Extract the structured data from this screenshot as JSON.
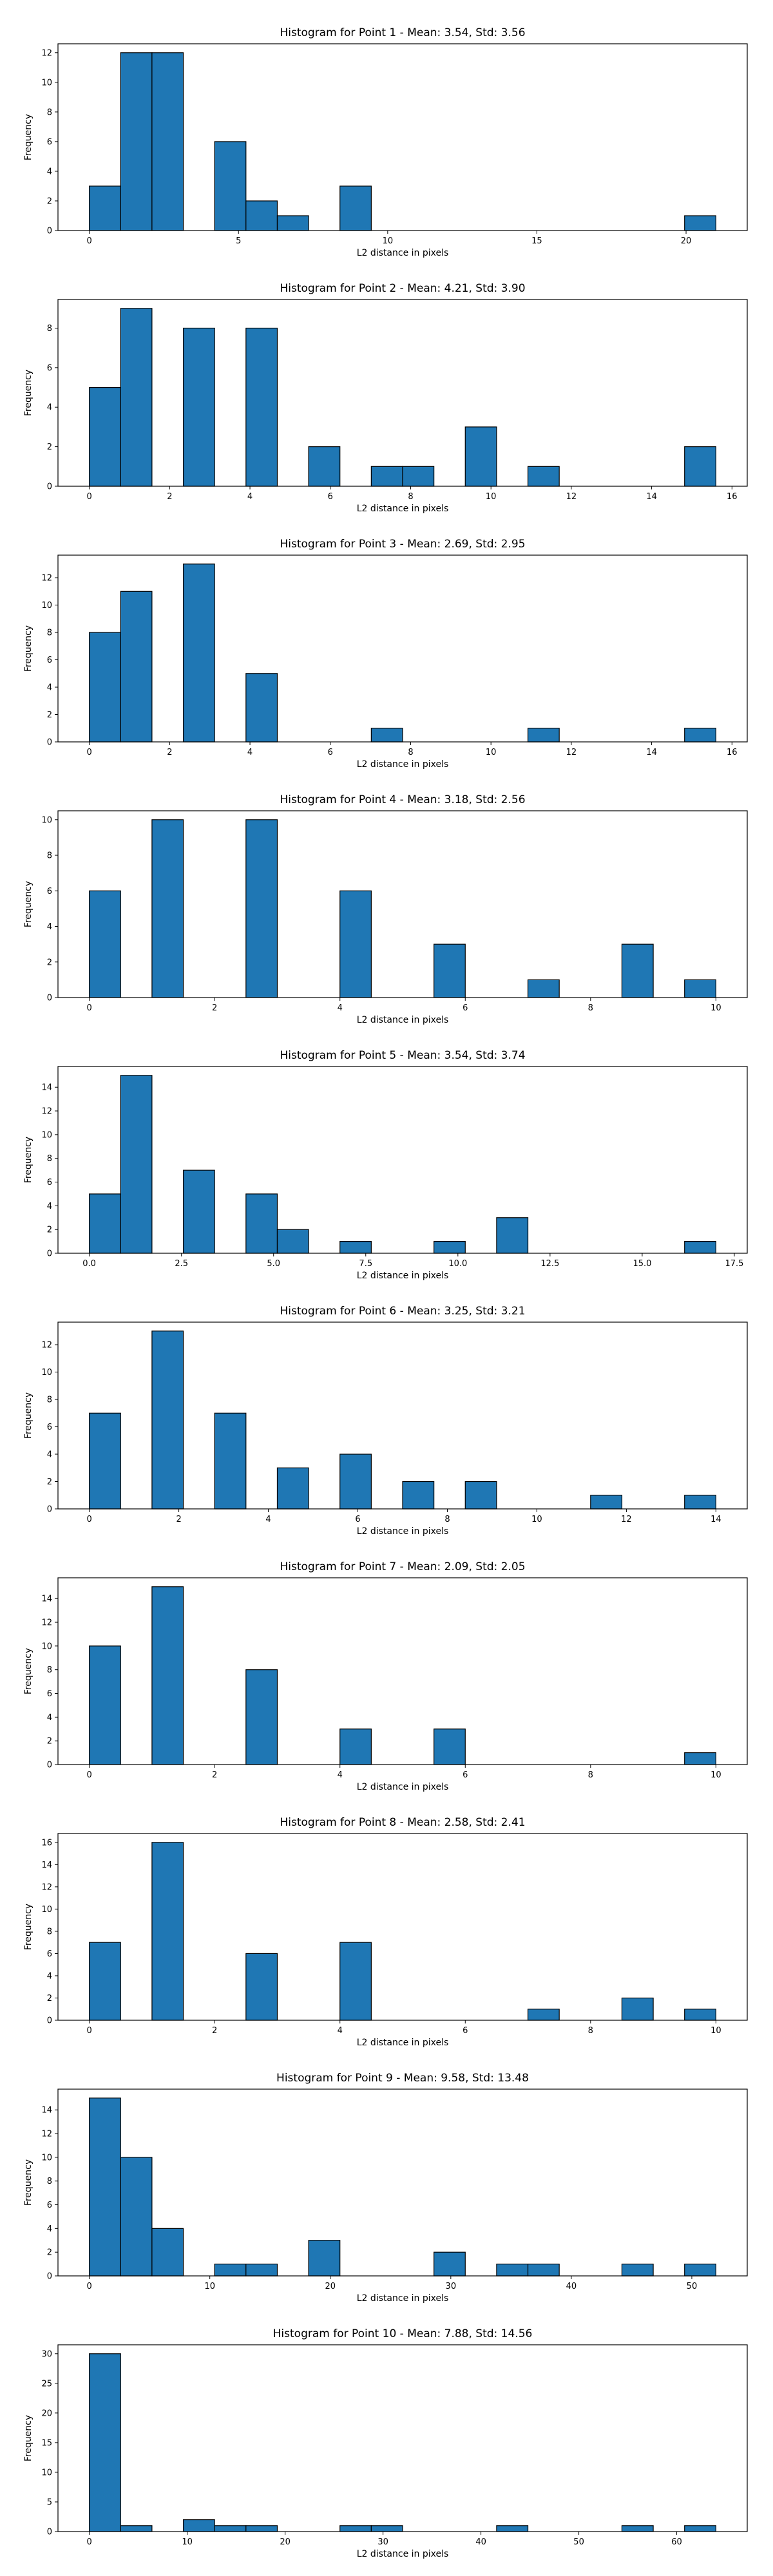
{
  "figure": {
    "bar_color": "#1f77b4",
    "edge_color": "#000000",
    "background": "#ffffff"
  },
  "chart_data": [
    {
      "type": "bar",
      "title": "Histogram for Point 1 - Mean: 3.54, Std: 3.56",
      "xlabel": "L2 distance in pixels",
      "ylabel": "Frequency",
      "xlim": [
        -1.05,
        22.05
      ],
      "ylim": [
        0,
        12.6
      ],
      "xticks": [
        0,
        5,
        10,
        15,
        20
      ],
      "yticks": [
        0,
        2,
        4,
        6,
        8,
        10,
        12
      ],
      "bin_edges": [
        0,
        1.05,
        2.1,
        3.15,
        4.2,
        5.25,
        6.3,
        7.35,
        8.4,
        9.45,
        10.5,
        11.55,
        12.6,
        13.65,
        14.7,
        15.75,
        16.8,
        17.85,
        18.9,
        19.95,
        21.0
      ],
      "values": [
        3,
        12,
        12,
        0,
        6,
        2,
        1,
        0,
        3,
        0,
        0,
        0,
        0,
        0,
        0,
        0,
        0,
        0,
        0,
        1
      ]
    },
    {
      "type": "bar",
      "title": "Histogram for Point 2 - Mean: 4.21, Std: 3.90",
      "xlabel": "L2 distance in pixels",
      "ylabel": "Frequency",
      "xlim": [
        -0.78,
        16.38
      ],
      "ylim": [
        0,
        9.45
      ],
      "xticks": [
        0,
        2,
        4,
        6,
        8,
        10,
        12,
        14,
        16
      ],
      "yticks": [
        0,
        2,
        4,
        6,
        8
      ],
      "bin_edges": [
        0,
        0.78,
        1.56,
        2.34,
        3.12,
        3.9,
        4.68,
        5.46,
        6.24,
        7.02,
        7.8,
        8.58,
        9.36,
        10.14,
        10.92,
        11.7,
        12.48,
        13.26,
        14.04,
        14.82,
        15.6
      ],
      "values": [
        5,
        9,
        0,
        8,
        0,
        8,
        0,
        2,
        0,
        1,
        1,
        0,
        3,
        0,
        1,
        0,
        0,
        0,
        0,
        2
      ]
    },
    {
      "type": "bar",
      "title": "Histogram for Point 3 - Mean: 2.69, Std: 2.95",
      "xlabel": "L2 distance in pixels",
      "ylabel": "Frequency",
      "xlim": [
        -0.78,
        16.38
      ],
      "ylim": [
        0,
        13.65
      ],
      "xticks": [
        0,
        2,
        4,
        6,
        8,
        10,
        12,
        14,
        16
      ],
      "yticks": [
        0,
        2,
        4,
        6,
        8,
        10,
        12
      ],
      "bin_edges": [
        0,
        0.78,
        1.56,
        2.34,
        3.12,
        3.9,
        4.68,
        5.46,
        6.24,
        7.02,
        7.8,
        8.58,
        9.36,
        10.14,
        10.92,
        11.7,
        12.48,
        13.26,
        14.04,
        14.82,
        15.6
      ],
      "values": [
        8,
        11,
        0,
        13,
        0,
        5,
        0,
        0,
        0,
        1,
        0,
        0,
        0,
        0,
        1,
        0,
        0,
        0,
        0,
        1
      ]
    },
    {
      "type": "bar",
      "title": "Histogram for Point 4 - Mean: 3.18, Std: 2.56",
      "xlabel": "L2 distance in pixels",
      "ylabel": "Frequency",
      "xlim": [
        -0.5,
        10.5
      ],
      "ylim": [
        0,
        10.5
      ],
      "xticks": [
        0,
        2,
        4,
        6,
        8,
        10
      ],
      "yticks": [
        0,
        2,
        4,
        6,
        8,
        10
      ],
      "bin_edges": [
        0,
        0.5,
        1.0,
        1.5,
        2.0,
        2.5,
        3.0,
        3.5,
        4.0,
        4.5,
        5.0,
        5.5,
        6.0,
        6.5,
        7.0,
        7.5,
        8.0,
        8.5,
        9.0,
        9.5,
        10.0
      ],
      "values": [
        6,
        0,
        10,
        0,
        0,
        10,
        0,
        0,
        6,
        0,
        0,
        3,
        0,
        0,
        1,
        0,
        0,
        3,
        0,
        1
      ]
    },
    {
      "type": "bar",
      "title": "Histogram for Point 5 - Mean: 3.54, Std: 3.74",
      "xlabel": "L2 distance in pixels",
      "ylabel": "Frequency",
      "xlim": [
        -0.85,
        17.85
      ],
      "ylim": [
        0,
        15.75
      ],
      "xticks": [
        0.0,
        2.5,
        5.0,
        7.5,
        10.0,
        12.5,
        15.0,
        17.5
      ],
      "xtick_labels": [
        "0.0",
        "2.5",
        "5.0",
        "7.5",
        "10.0",
        "12.5",
        "15.0",
        "17.5"
      ],
      "yticks": [
        0,
        2,
        4,
        6,
        8,
        10,
        12,
        14
      ],
      "bin_edges": [
        0,
        0.85,
        1.7,
        2.55,
        3.4,
        4.25,
        5.1,
        5.95,
        6.8,
        7.65,
        8.5,
        9.35,
        10.2,
        11.05,
        11.9,
        12.75,
        13.6,
        14.45,
        15.3,
        16.15,
        17.0
      ],
      "values": [
        5,
        15,
        0,
        7,
        0,
        5,
        2,
        0,
        1,
        0,
        0,
        1,
        0,
        3,
        0,
        0,
        0,
        0,
        0,
        1
      ]
    },
    {
      "type": "bar",
      "title": "Histogram for Point 6 - Mean: 3.25, Std: 3.21",
      "xlabel": "L2 distance in pixels",
      "ylabel": "Frequency",
      "xlim": [
        -0.7,
        14.7
      ],
      "ylim": [
        0,
        13.65
      ],
      "xticks": [
        0,
        2,
        4,
        6,
        8,
        10,
        12,
        14
      ],
      "yticks": [
        0,
        2,
        4,
        6,
        8,
        10,
        12
      ],
      "bin_edges": [
        0,
        0.7,
        1.4,
        2.1,
        2.8,
        3.5,
        4.2,
        4.9,
        5.6,
        6.3,
        7.0,
        7.7,
        8.4,
        9.1,
        9.8,
        10.5,
        11.2,
        11.9,
        12.6,
        13.3,
        14.0
      ],
      "values": [
        7,
        0,
        13,
        0,
        7,
        0,
        3,
        0,
        4,
        0,
        2,
        0,
        2,
        0,
        0,
        0,
        1,
        0,
        0,
        1
      ]
    },
    {
      "type": "bar",
      "title": "Histogram for Point 7 - Mean: 2.09, Std: 2.05",
      "xlabel": "L2 distance in pixels",
      "ylabel": "Frequency",
      "xlim": [
        -0.5,
        10.5
      ],
      "ylim": [
        0,
        15.75
      ],
      "xticks": [
        0,
        2,
        4,
        6,
        8,
        10
      ],
      "yticks": [
        0,
        2,
        4,
        6,
        8,
        10,
        12,
        14
      ],
      "bin_edges": [
        0,
        0.5,
        1.0,
        1.5,
        2.0,
        2.5,
        3.0,
        3.5,
        4.0,
        4.5,
        5.0,
        5.5,
        6.0,
        6.5,
        7.0,
        7.5,
        8.0,
        8.5,
        9.0,
        9.5,
        10.0
      ],
      "values": [
        10,
        0,
        15,
        0,
        0,
        8,
        0,
        0,
        3,
        0,
        0,
        3,
        0,
        0,
        0,
        0,
        0,
        0,
        0,
        1
      ]
    },
    {
      "type": "bar",
      "title": "Histogram for Point 8 - Mean: 2.58, Std: 2.41",
      "xlabel": "L2 distance in pixels",
      "ylabel": "Frequency",
      "xlim": [
        -0.5,
        10.5
      ],
      "ylim": [
        0,
        16.8
      ],
      "xticks": [
        0,
        2,
        4,
        6,
        8,
        10
      ],
      "yticks": [
        0,
        2,
        4,
        6,
        8,
        10,
        12,
        14,
        16
      ],
      "bin_edges": [
        0,
        0.5,
        1.0,
        1.5,
        2.0,
        2.5,
        3.0,
        3.5,
        4.0,
        4.5,
        5.0,
        5.5,
        6.0,
        6.5,
        7.0,
        7.5,
        8.0,
        8.5,
        9.0,
        9.5,
        10.0
      ],
      "values": [
        7,
        0,
        16,
        0,
        0,
        6,
        0,
        0,
        7,
        0,
        0,
        0,
        0,
        0,
        1,
        0,
        0,
        2,
        0,
        1
      ]
    },
    {
      "type": "bar",
      "title": "Histogram for Point 9 - Mean: 9.58, Std: 13.48",
      "xlabel": "L2 distance in pixels",
      "ylabel": "Frequency",
      "xlim": [
        -2.6,
        54.6
      ],
      "ylim": [
        0,
        15.75
      ],
      "xticks": [
        0,
        10,
        20,
        30,
        40,
        50
      ],
      "yticks": [
        0,
        2,
        4,
        6,
        8,
        10,
        12,
        14
      ],
      "bin_edges": [
        0,
        2.6,
        5.2,
        7.8,
        10.4,
        13.0,
        15.6,
        18.2,
        20.8,
        23.4,
        26.0,
        28.6,
        31.2,
        33.8,
        36.4,
        39.0,
        41.6,
        44.2,
        46.8,
        49.4,
        52.0
      ],
      "values": [
        15,
        10,
        4,
        0,
        1,
        1,
        0,
        3,
        0,
        0,
        0,
        2,
        0,
        1,
        1,
        0,
        0,
        1,
        0,
        1
      ]
    },
    {
      "type": "bar",
      "title": "Histogram for Point 10 - Mean: 7.88, Std: 14.56",
      "xlabel": "L2 distance in pixels",
      "ylabel": "Frequency",
      "xlim": [
        -3.2,
        67.2
      ],
      "ylim": [
        0,
        31.5
      ],
      "xticks": [
        0,
        10,
        20,
        30,
        40,
        50,
        60
      ],
      "yticks": [
        0,
        5,
        10,
        15,
        20,
        25,
        30
      ],
      "bin_edges": [
        0,
        3.2,
        6.4,
        9.6,
        12.8,
        16.0,
        19.2,
        22.4,
        25.6,
        28.8,
        32.0,
        35.2,
        38.4,
        41.6,
        44.8,
        48.0,
        51.2,
        54.4,
        57.6,
        60.8,
        64.0
      ],
      "values": [
        30,
        1,
        0,
        2,
        1,
        1,
        0,
        0,
        1,
        1,
        0,
        0,
        0,
        1,
        0,
        0,
        0,
        1,
        0,
        1
      ]
    }
  ]
}
